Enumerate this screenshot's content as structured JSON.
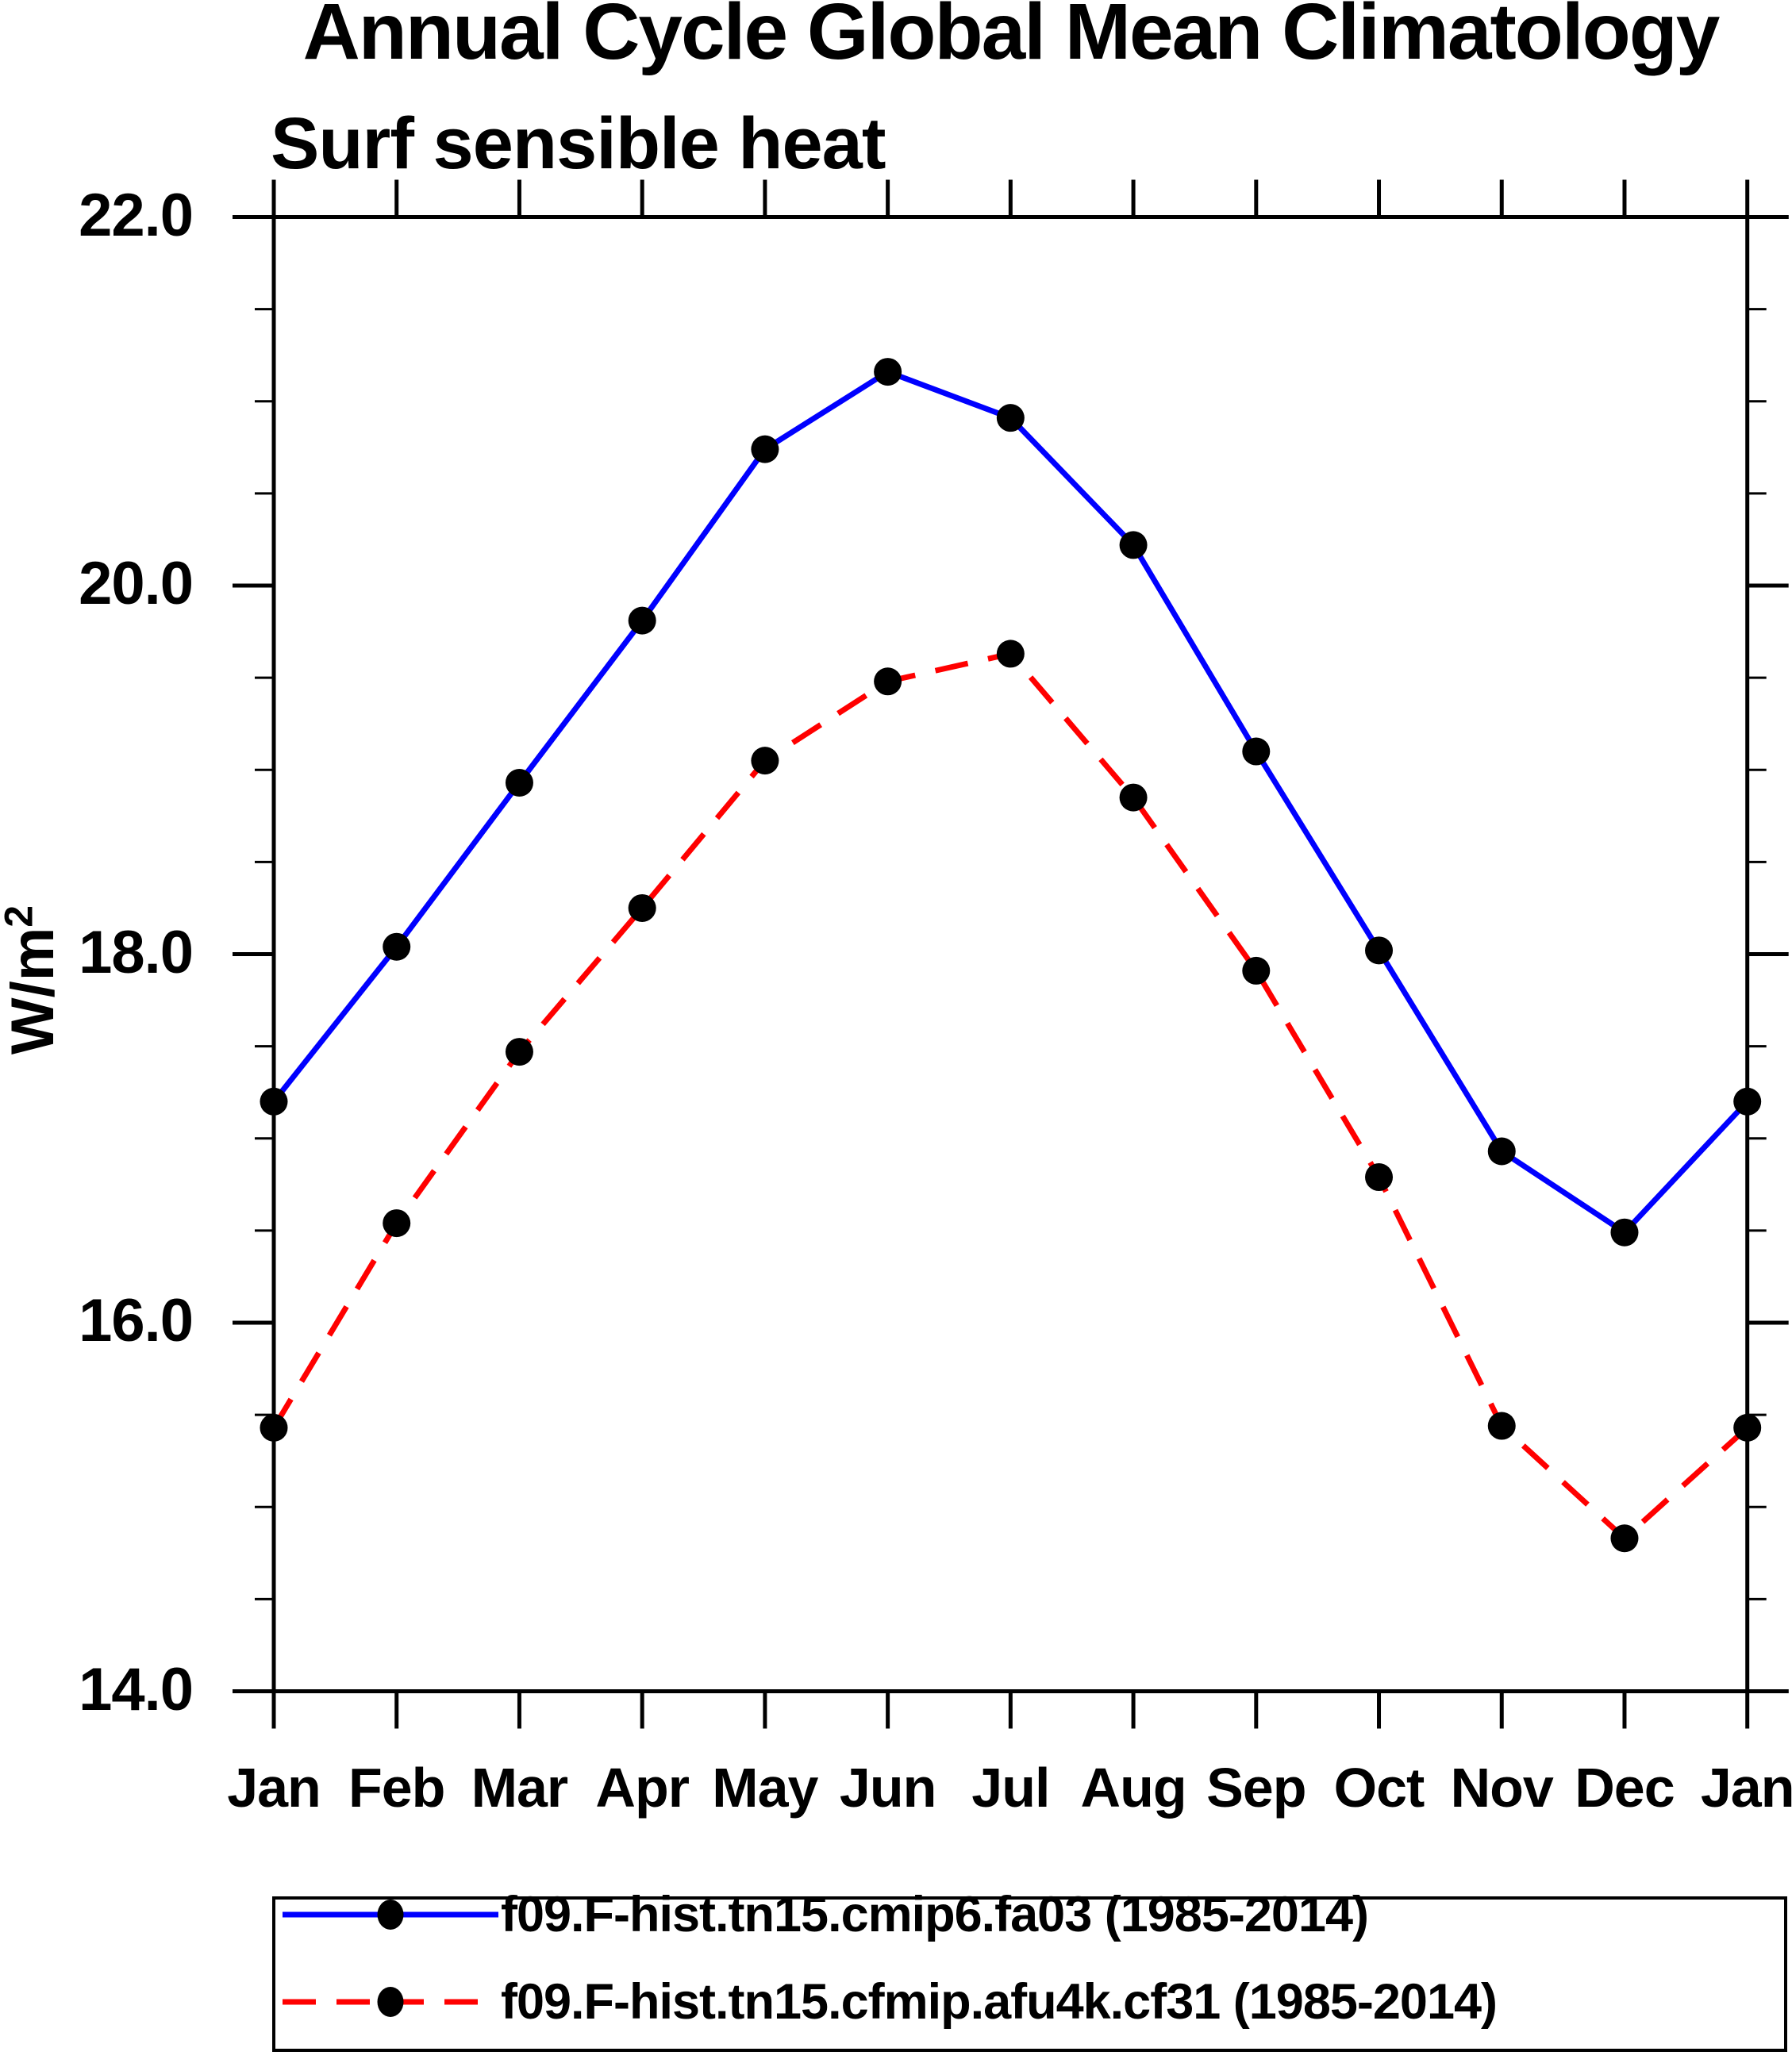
{
  "title": "Annual Cycle Global Mean Climatology",
  "subtitle": "Surf sensible heat",
  "y_axis": {
    "label": "W/m²",
    "label_main": "W/m",
    "label_sup": "2",
    "tick_values": [
      22.0,
      20.0,
      18.0,
      16.0,
      14.0
    ],
    "tick_labels": [
      "22.0",
      "20.0",
      "18.0",
      "16.0",
      "14.0"
    ],
    "minor_step": 0.5
  },
  "x_axis": {
    "labels": [
      "Jan",
      "Feb",
      "Mar",
      "Apr",
      "May",
      "Jun",
      "Jul",
      "Aug",
      "Sep",
      "Oct",
      "Nov",
      "Dec",
      "Jan"
    ]
  },
  "colors": {
    "series1": "#0000ff",
    "series2": "#ff0000",
    "marker": "#000000",
    "axis": "#000000",
    "background": "#ffffff"
  },
  "chart_data": {
    "type": "line",
    "title": "Annual Cycle Global Mean Climatology",
    "subtitle": "Surf sensible heat",
    "xlabel": "",
    "ylabel": "W/m²",
    "ylim": [
      14.0,
      22.0
    ],
    "ytick_interval": 2.0,
    "yminor_interval": 0.5,
    "grid": false,
    "legend_position": "bottom",
    "categories": [
      "Jan",
      "Feb",
      "Mar",
      "Apr",
      "May",
      "Jun",
      "Jul",
      "Aug",
      "Sep",
      "Oct",
      "Nov",
      "Dec",
      "Jan"
    ],
    "series": [
      {
        "name": "f09.F-hist.tn15.cmip6.fa03 (1985-2014)",
        "color": "#0000ff",
        "line_style": "solid",
        "marker": "filled-circle",
        "marker_color": "#000000",
        "values": [
          17.2,
          18.04,
          18.93,
          19.81,
          20.74,
          21.16,
          20.91,
          20.22,
          19.1,
          18.02,
          16.93,
          16.49,
          17.2
        ]
      },
      {
        "name": "f09.F-hist.tn15.cfmip.afu4k.cf31 (1985-2014)",
        "color": "#ff0000",
        "line_style": "dashed",
        "marker": "filled-circle",
        "marker_color": "#000000",
        "values": [
          15.43,
          16.54,
          17.47,
          18.25,
          19.05,
          19.48,
          19.63,
          18.85,
          17.91,
          16.79,
          15.44,
          14.83,
          15.43
        ]
      }
    ]
  }
}
